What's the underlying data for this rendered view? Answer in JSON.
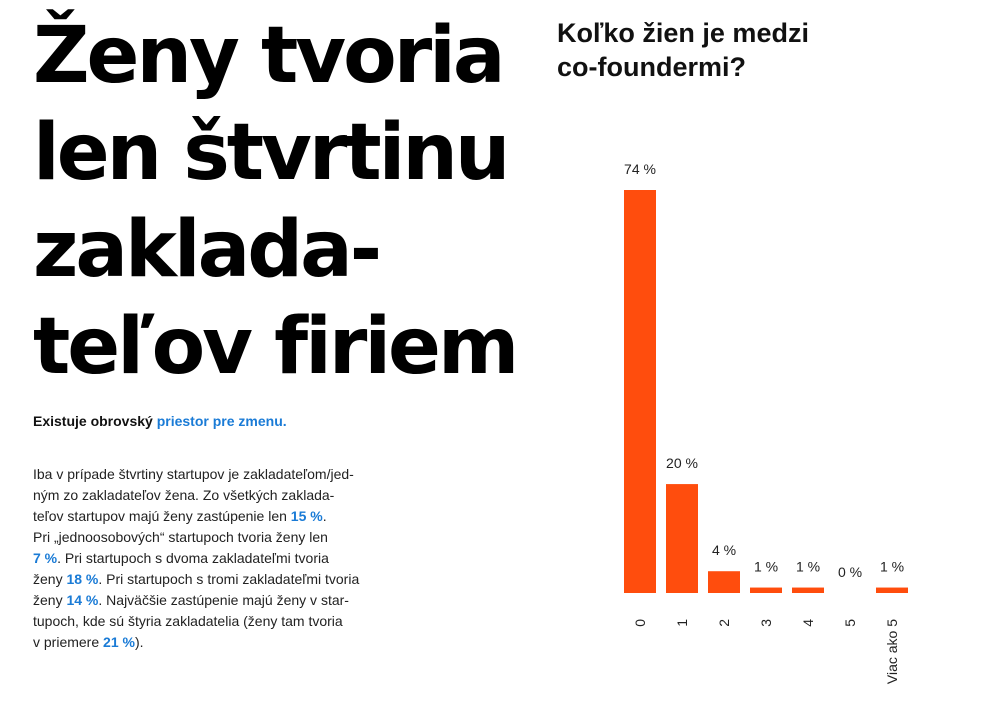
{
  "article": {
    "headline": [
      "Ženy tvoria",
      "len štvrtinu",
      "zaklada-",
      "teľov firiem"
    ],
    "lead": {
      "text": "Existuje obrovský ",
      "highlight": "priestor pre zmenu."
    },
    "body_lines": [
      [
        "Iba v prípade štvrtiny startupov je zakladateľom/jed-"
      ],
      [
        "ným zo zakladateľov žena. Zo všetkých zaklada-"
      ],
      [
        "teľov startupov majú ženy zastúpenie len ",
        {
          "b": "15 %"
        },
        "."
      ],
      [
        "Pri „jednoosobových“ startupoch tvoria ženy len"
      ],
      [
        {
          "b": "7 %"
        },
        ". Pri startupoch s dvoma zakladateľmi tvoria"
      ],
      [
        "ženy ",
        {
          "b": "18 %"
        },
        ". Pri startupoch s tromi zakladateľmi tvoria"
      ],
      [
        "ženy ",
        {
          "b": "14 %"
        },
        ". Najväčšie zastúpenie majú ženy v star-"
      ],
      [
        "tupoch, kde sú štyria zakladatelia (ženy tam tvoria"
      ],
      [
        "v priemere ",
        {
          "b": "21 %"
        },
        ")."
      ]
    ]
  },
  "colors": {
    "bar": "#ff4d0d",
    "highlight": "#1a7bd6"
  },
  "chart_data": {
    "type": "bar",
    "title": "Koľko žien je medzi co-foundermi?",
    "title_lines": [
      "Koľko žien je medzi",
      "co-foundermi?"
    ],
    "categories": [
      "0",
      "1",
      "2",
      "3",
      "4",
      "5",
      "Viac ako 5"
    ],
    "values": [
      74,
      20,
      4,
      1,
      1,
      0,
      1
    ],
    "value_labels": [
      "74 %",
      "20 %",
      "4 %",
      "1 %",
      "1 %",
      "0 %",
      "1 %"
    ],
    "unit": "%",
    "xlabel": "",
    "ylabel": "",
    "ylim": [
      0,
      74
    ],
    "grid": false,
    "legend": "none"
  }
}
